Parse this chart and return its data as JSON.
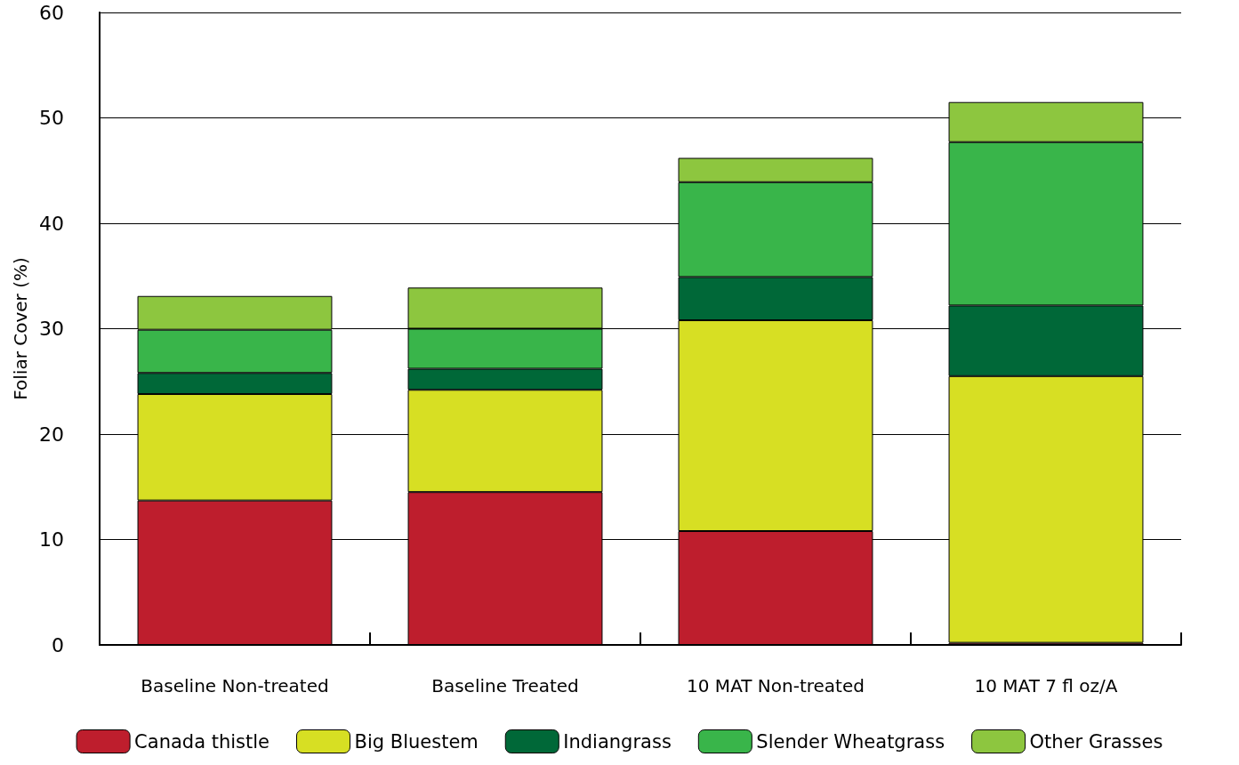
{
  "chart_data": {
    "type": "bar",
    "stacked": true,
    "ylabel": "Foliar Cover (%)",
    "categories": [
      "Baseline Non-treated",
      "Baseline Treated",
      "10 MAT Non-treated",
      "10 MAT 7 fl oz/A"
    ],
    "series": [
      {
        "name": "Canada thistle",
        "color": "#be1e2d",
        "values": [
          13.7,
          14.5,
          10.8,
          0.2
        ]
      },
      {
        "name": "Big Bluestem",
        "color": "#d7df23",
        "values": [
          10.1,
          9.7,
          20.0,
          25.3
        ]
      },
      {
        "name": "Indiangrass",
        "color": "#006838",
        "values": [
          2.0,
          2.0,
          4.1,
          6.7
        ]
      },
      {
        "name": "Slender Wheatgrass",
        "color": "#39b54a",
        "values": [
          4.1,
          3.8,
          9.0,
          15.5
        ]
      },
      {
        "name": "Other Grasses",
        "color": "#8dc63f",
        "values": [
          3.2,
          3.9,
          2.3,
          3.8
        ]
      }
    ],
    "ylim": [
      0,
      60
    ],
    "yticks": [
      0,
      10,
      20,
      30,
      40,
      50,
      60
    ],
    "grid": "y",
    "legend": "bottom"
  }
}
